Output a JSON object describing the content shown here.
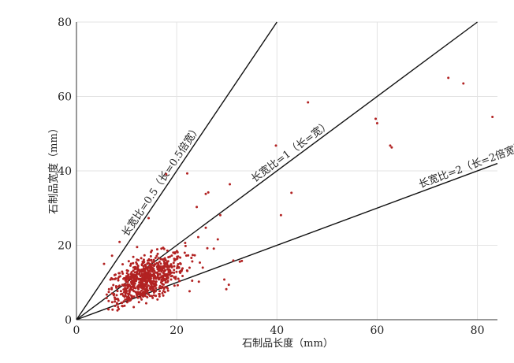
{
  "chart_data": {
    "type": "scatter",
    "xlabel": "石制品长度（mm）",
    "ylabel": "石制品宽度（mm）",
    "xlim": [
      0,
      84
    ],
    "ylim": [
      0,
      80
    ],
    "x_ticks": [
      0,
      20,
      40,
      60,
      80
    ],
    "y_ticks": [
      0,
      20,
      40,
      60,
      80
    ],
    "grid": true,
    "point_color": "#b22222",
    "reference_lines": [
      {
        "slope": 2,
        "label": "长宽比=0.5（长=0.5倍宽）"
      },
      {
        "slope": 1,
        "label": "长宽比=1（长=宽）"
      },
      {
        "slope": 0.5,
        "label": "长宽比=2（长=2倍宽）"
      }
    ],
    "points": [
      [
        74.2,
        65.0
      ],
      [
        77.2,
        63.5
      ],
      [
        83.0,
        54.5
      ],
      [
        59.7,
        54.0
      ],
      [
        60.0,
        52.8
      ],
      [
        46.2,
        58.4
      ],
      [
        62.6,
        46.8
      ],
      [
        62.9,
        46.3
      ],
      [
        39.8,
        46.8
      ],
      [
        42.9,
        34.1
      ],
      [
        40.8,
        28.1
      ],
      [
        30.6,
        36.4
      ],
      [
        22.1,
        39.3
      ],
      [
        17.9,
        39.1
      ],
      [
        25.8,
        33.8
      ],
      [
        26.3,
        34.2
      ],
      [
        24.0,
        30.3
      ],
      [
        28.7,
        28.1
      ],
      [
        32.6,
        15.6
      ],
      [
        30.4,
        9.4
      ],
      [
        29.9,
        8.2
      ],
      [
        29.5,
        10.8
      ],
      [
        31.3,
        15.9
      ],
      [
        33.0,
        15.8
      ],
      [
        14.4,
        27.3
      ],
      [
        5.5,
        15.0
      ],
      [
        6.5,
        8.2
      ],
      [
        7.1,
        17.2
      ],
      [
        8.6,
        20.9
      ],
      [
        24.3,
        22.2
      ],
      [
        25.8,
        24.7
      ],
      [
        27.4,
        19.1
      ],
      [
        28.2,
        21.6
      ],
      [
        21.6,
        18.0
      ],
      [
        23.6,
        17.3
      ],
      [
        20.7,
        12.6
      ],
      [
        25.2,
        14.0
      ]
    ],
    "cluster": {
      "count": 720,
      "x_mean": 13.8,
      "x_sd": 3.9,
      "y_mean": 10.8,
      "y_sd": 3.5,
      "corr": 0.55,
      "x_min": 6.0,
      "x_max": 30.5,
      "y_min": 1.8,
      "y_max": 26.0
    }
  }
}
